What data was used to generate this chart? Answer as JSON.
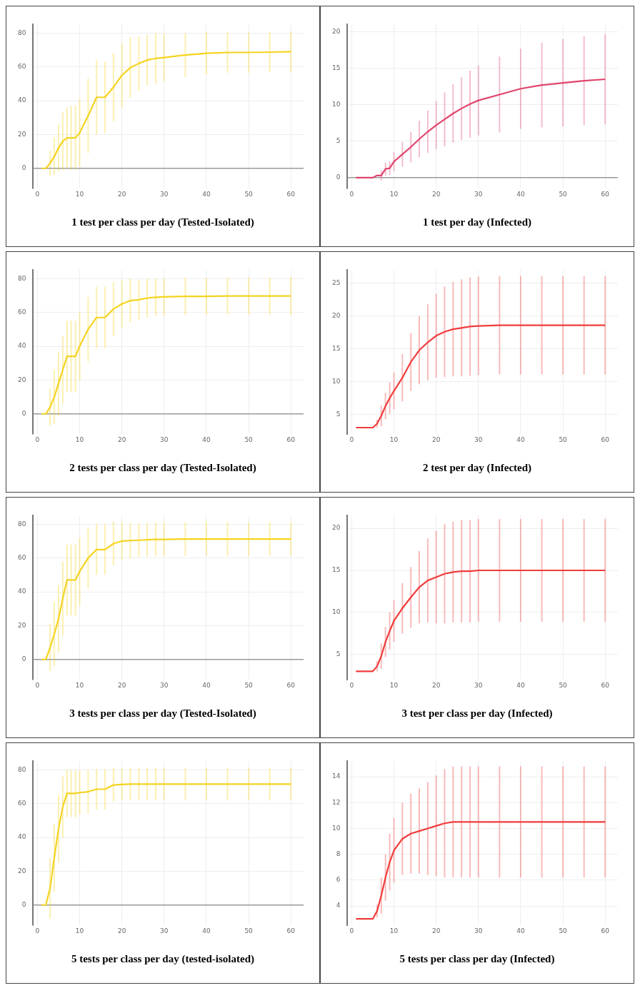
{
  "chart_data": [
    {
      "type": "line",
      "title": "1 test per class per day (Tested-Isolated)",
      "x": [
        1,
        2,
        3,
        4,
        5,
        6,
        7,
        8,
        9,
        10,
        12,
        14,
        16,
        18,
        20,
        22,
        24,
        26,
        28,
        30,
        35,
        40,
        45,
        50,
        55,
        60
      ],
      "series": [
        {
          "color": "#f5d320",
          "values": [
            0,
            0,
            3,
            7,
            12,
            16,
            18,
            18,
            18,
            21,
            31,
            42,
            42,
            48,
            55,
            59.5,
            62,
            64,
            65,
            65.5,
            67,
            68,
            68.5,
            68.5,
            68.7,
            69
          ],
          "errors": [
            null,
            null,
            7.5,
            11,
            14,
            17,
            18,
            19,
            19,
            20,
            22,
            22,
            21,
            20,
            19,
            18,
            16,
            15,
            15,
            14,
            13,
            12.5,
            12,
            12,
            12,
            12
          ]
        }
      ],
      "xlim": [
        -1,
        63
      ],
      "xticks": [
        0,
        10,
        20,
        30,
        40,
        50,
        60
      ],
      "ylim": [
        -12,
        85
      ],
      "yticks": [
        0,
        20,
        40,
        60,
        80
      ],
      "grid": true,
      "legend": false,
      "marker": "none",
      "line_style": "solid"
    },
    {
      "type": "line",
      "title": "1 test per day (Infected)",
      "x": [
        1,
        2,
        3,
        4,
        5,
        6,
        7,
        8,
        9,
        10,
        12,
        14,
        16,
        18,
        20,
        22,
        24,
        26,
        28,
        30,
        35,
        40,
        45,
        50,
        55,
        60
      ],
      "series": [
        {
          "color": "#e0446c",
          "values": [
            0,
            0,
            0,
            0,
            0,
            0.3,
            0.3,
            1.2,
            1.3,
            2.2,
            3.2,
            4.2,
            5.3,
            6.3,
            7.2,
            8,
            8.8,
            9.5,
            10.1,
            10.6,
            11.4,
            12.2,
            12.7,
            13,
            13.3,
            13.5
          ],
          "errors": [
            null,
            null,
            null,
            null,
            null,
            null,
            0.7,
            0.9,
            0.9,
            1.3,
            1.7,
            2.1,
            2.5,
            2.9,
            3.3,
            3.7,
            4,
            4.3,
            4.6,
            4.8,
            5.2,
            5.5,
            5.8,
            6,
            6.1,
            6.2
          ]
        }
      ],
      "xlim": [
        -1,
        63
      ],
      "xticks": [
        0,
        10,
        20,
        30,
        40,
        50,
        60
      ],
      "ylim": [
        -1.5,
        21
      ],
      "yticks": [
        0,
        5,
        10,
        15,
        20
      ],
      "grid": true,
      "legend": false,
      "marker": "none",
      "line_style": "solid"
    },
    {
      "type": "line",
      "title": "2 tests per class per day (Tested-Isolated)",
      "x": [
        1,
        2,
        3,
        4,
        5,
        6,
        7,
        8,
        9,
        10,
        12,
        14,
        16,
        18,
        20,
        22,
        24,
        26,
        28,
        30,
        35,
        40,
        45,
        50,
        55,
        60
      ],
      "series": [
        {
          "color": "#f5d320",
          "values": [
            0,
            0,
            4,
            10,
            18,
            26,
            34,
            34,
            34,
            40,
            50,
            57,
            57,
            62,
            65,
            67,
            67.5,
            68.5,
            69,
            69.2,
            69.5,
            69.5,
            69.7,
            69.7,
            69.7,
            69.7
          ],
          "errors": [
            null,
            null,
            11,
            16,
            19,
            20,
            21,
            21,
            21,
            20,
            19,
            18,
            18,
            16,
            14,
            13,
            12,
            11.5,
            11,
            11,
            11,
            11,
            11,
            11,
            11,
            11
          ]
        }
      ],
      "xlim": [
        -1,
        63
      ],
      "xticks": [
        0,
        10,
        20,
        30,
        40,
        50,
        60
      ],
      "ylim": [
        -12,
        85
      ],
      "yticks": [
        0,
        20,
        40,
        60,
        80
      ],
      "grid": true,
      "legend": false,
      "marker": "none",
      "line_style": "solid"
    },
    {
      "type": "line",
      "title": "2 test per day (Infected)",
      "x": [
        1,
        2,
        3,
        4,
        5,
        6,
        7,
        8,
        9,
        10,
        12,
        14,
        16,
        18,
        20,
        22,
        24,
        26,
        28,
        30,
        35,
        40,
        45,
        50,
        55,
        60
      ],
      "series": [
        {
          "color": "#f03c3c",
          "values": [
            3,
            3,
            3,
            3,
            3,
            3.6,
            4.8,
            6.3,
            7.5,
            8.6,
            10.6,
            13,
            14.8,
            16,
            17,
            17.6,
            18,
            18.2,
            18.4,
            18.5,
            18.6,
            18.6,
            18.6,
            18.6,
            18.6,
            18.6
          ],
          "errors": [
            null,
            null,
            null,
            null,
            null,
            0.6,
            1.6,
            2,
            2.4,
            2.8,
            3.6,
            4.4,
            5.2,
            5.8,
            6.4,
            6.9,
            7.2,
            7.4,
            7.5,
            7.5,
            7.5,
            7.5,
            7.5,
            7.5,
            7.5,
            7.5
          ]
        }
      ],
      "xlim": [
        -1,
        63
      ],
      "xticks": [
        0,
        10,
        20,
        30,
        40,
        50,
        60
      ],
      "ylim": [
        2,
        27
      ],
      "yticks": [
        5,
        10,
        15,
        20,
        25
      ],
      "grid": true,
      "legend": false,
      "marker": "none",
      "line_style": "solid"
    },
    {
      "type": "line",
      "title": "3 tests per class per day (Tested-Isolated)",
      "x": [
        1,
        2,
        3,
        4,
        5,
        6,
        7,
        8,
        9,
        10,
        12,
        14,
        16,
        18,
        20,
        22,
        24,
        26,
        28,
        30,
        35,
        40,
        45,
        50,
        55,
        60
      ],
      "series": [
        {
          "color": "#f5d320",
          "values": [
            0,
            0,
            7,
            15,
            24,
            36,
            47,
            47,
            47,
            52,
            60,
            65,
            65,
            68.5,
            70,
            70.3,
            70.5,
            70.8,
            71,
            71,
            71.2,
            71.2,
            71.2,
            71.2,
            71.2,
            71.2
          ],
          "errors": [
            null,
            null,
            14,
            19,
            20,
            22,
            21,
            21,
            21,
            20,
            18,
            15,
            15,
            13,
            11,
            10.5,
            10,
            10,
            10,
            10,
            10,
            10,
            10,
            10,
            10,
            10
          ]
        }
      ],
      "xlim": [
        -1,
        63
      ],
      "xticks": [
        0,
        10,
        20,
        30,
        40,
        50,
        60
      ],
      "ylim": [
        -12,
        85
      ],
      "yticks": [
        0,
        20,
        40,
        60,
        80
      ],
      "grid": true,
      "legend": false,
      "marker": "none",
      "line_style": "solid"
    },
    {
      "type": "line",
      "title": "3 test per class per day (Infected)",
      "x": [
        1,
        2,
        3,
        4,
        5,
        6,
        7,
        8,
        9,
        10,
        12,
        14,
        16,
        18,
        20,
        22,
        24,
        26,
        28,
        30,
        35,
        40,
        45,
        50,
        55,
        60
      ],
      "series": [
        {
          "color": "#f03c3c",
          "values": [
            3,
            3,
            3,
            3,
            3,
            3.6,
            4.8,
            6.5,
            7.8,
            9,
            10.5,
            11.8,
            13,
            13.8,
            14.2,
            14.6,
            14.8,
            14.9,
            14.9,
            15,
            15,
            15,
            15,
            15,
            15,
            15
          ],
          "errors": [
            null,
            null,
            null,
            null,
            null,
            0.6,
            1.5,
            1.8,
            2.2,
            2.5,
            3,
            3.6,
            4.3,
            5,
            5.5,
            5.9,
            6,
            6.1,
            6.1,
            6.1,
            6.1,
            6.1,
            6.1,
            6.1,
            6.1,
            6.1
          ]
        }
      ],
      "xlim": [
        -1,
        63
      ],
      "xticks": [
        0,
        10,
        20,
        30,
        40,
        50,
        60
      ],
      "ylim": [
        2,
        21.5
      ],
      "yticks": [
        5,
        10,
        15,
        20
      ],
      "grid": true,
      "legend": false,
      "marker": "none",
      "line_style": "solid"
    },
    {
      "type": "line",
      "title": "5 tests per class per day (tested-isolated)",
      "x": [
        1,
        2,
        3,
        4,
        5,
        6,
        7,
        8,
        9,
        10,
        12,
        14,
        16,
        18,
        20,
        22,
        24,
        26,
        28,
        30,
        35,
        40,
        45,
        50,
        55,
        60
      ],
      "series": [
        {
          "color": "#f5d320",
          "values": [
            0,
            0,
            10,
            28,
            45,
            58,
            66,
            66,
            66,
            66.5,
            67,
            68.5,
            68.5,
            71,
            71.3,
            71.5,
            71.5,
            71.5,
            71.5,
            71.5,
            71.5,
            71.5,
            71.5,
            71.5,
            71.5,
            71.5
          ],
          "errors": [
            null,
            null,
            18,
            20,
            20,
            18,
            14,
            14,
            14,
            13,
            13,
            12,
            12,
            10,
            9.5,
            9.5,
            9.5,
            9.5,
            9.5,
            9.5,
            9.5,
            9.5,
            9.5,
            9.5,
            9.5,
            9.5
          ]
        }
      ],
      "xlim": [
        -1,
        63
      ],
      "xticks": [
        0,
        10,
        20,
        30,
        40,
        50,
        60
      ],
      "ylim": [
        -12,
        85
      ],
      "yticks": [
        0,
        20,
        40,
        60,
        80
      ],
      "grid": true,
      "legend": false,
      "marker": "none",
      "line_style": "solid"
    },
    {
      "type": "line",
      "title": "5 tests per class per day (Infected)",
      "x": [
        1,
        2,
        3,
        4,
        5,
        6,
        7,
        8,
        9,
        10,
        12,
        14,
        16,
        18,
        20,
        22,
        24,
        26,
        28,
        30,
        35,
        40,
        45,
        50,
        55,
        60
      ],
      "series": [
        {
          "color": "#f03c3c",
          "values": [
            3,
            3,
            3,
            3,
            3,
            3.6,
            4.8,
            6.2,
            7.4,
            8.3,
            9.2,
            9.6,
            9.8,
            10,
            10.2,
            10.4,
            10.5,
            10.5,
            10.5,
            10.5,
            10.5,
            10.5,
            10.5,
            10.5,
            10.5,
            10.5
          ],
          "errors": [
            null,
            null,
            null,
            null,
            null,
            0.5,
            1.4,
            1.8,
            2.2,
            2.5,
            2.8,
            3.1,
            3.3,
            3.6,
            3.9,
            4.2,
            4.3,
            4.3,
            4.3,
            4.3,
            4.3,
            4.3,
            4.3,
            4.3,
            4.3,
            4.3
          ]
        }
      ],
      "xlim": [
        -1,
        63
      ],
      "xticks": [
        0,
        10,
        20,
        30,
        40,
        50,
        60
      ],
      "ylim": [
        2.5,
        15.2
      ],
      "yticks": [
        4,
        6,
        8,
        10,
        12,
        14
      ],
      "grid": true,
      "legend": false,
      "marker": "none",
      "line_style": "solid"
    }
  ]
}
